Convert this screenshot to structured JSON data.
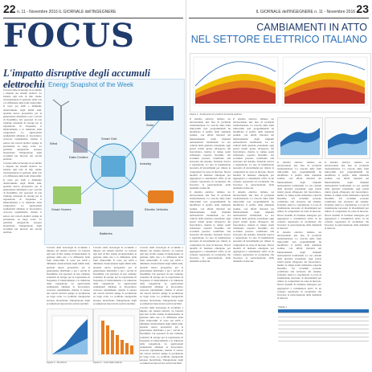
{
  "left_page": {
    "page_number": "22",
    "header_text": "n. 11 - Novembre 2016  IL GIORNALE dell'INGEGNERE",
    "section_title": "FOCUS",
    "headline": "L'impatto disruptive degli accumuli elettrochimici",
    "byline": "di AUTORE | ESTRATTI",
    "infographic_title": "Energy Snapshot of the Week",
    "infographic_labels": [
      "Smart Homes",
      "Electric Vehicles",
      "Wind",
      "Solar",
      "Batteries",
      "Smart Grid",
      "Data Centers",
      "Industry"
    ],
    "chart_captions": [
      "Figura 2 - Previsioni",
      "Figura 3 - Costi delle batterie"
    ],
    "body_text": "Crescita delle tecnologie di accumulo e impatto sui sistemi elettrici. Le batterie agli ioni di litio stanno rivoluzionando la gestione della rete e la diffusione delle fonti rinnovabili. Il costo per kWh e diminuito drasticamente negli ultimi anni, aprendo nuove prospettive per la generazione distribuita e per i servizi di flessibilita. Gli operatori di rete valutano soluzioni di storage per la regolazione di frequenza, il bilanciamento e la riduzione delle congestioni. Le applicazioni residenziali abbinate al fotovoltaico crescono rapidamente, mentre il settore dei veicoli elettrici spinge la produzione su larga scala. Le politiche energetiche europee incentivano l'integrazione degli accumuli nei mercati dei servizi ancillari."
  },
  "right_page": {
    "page_number": "23",
    "header_text": "IL GIORNALE dell'INGEGNERE  n. 11 - Novembre 2016",
    "title_line1": "CAMBIAMENTI IN ATTO",
    "title_line2": "NEL SETTORE ELETTRICO ITALIANO",
    "chart_caption": "Figura 1 - Andamento dei profili di domanda elettrica",
    "table_caption": "Tabella 1",
    "body_text": "Il sistema elettrico italiano sta attraversando una fase di profonda trasformazione. La crescita delle fonti rinnovabili non programmabili ha modificato il profilo della domanda residua, con effetti rilevanti sul funzionamento degli impianti termoelettrici tradizionali. Le ore centrali della giornata presentano oggi prezzi ridotti grazie all'apporto del fotovoltaico, mentre le rampe serali richiedono capacita flessibile. Gli accumuli possono contribuire alla sicurezza del sistema, fornendo riserva e regolazione. La rete di trasmissione necessita di investimenti per ridurre le congestioni tra zone di mercato. Nuovi modelli di business emergono per aggregatori e consumatori attivi, in un contesto regolatorio in evoluzione che favorisce la partecipazione della domanda ai mercati."
  },
  "colors": {
    "title_blue": "#1f3a6b",
    "accent_blue": "#2a6fb6",
    "chart_red": "#c0392b",
    "chart_orange": "#e67e22",
    "chart_yellow": "#f1c40f"
  }
}
